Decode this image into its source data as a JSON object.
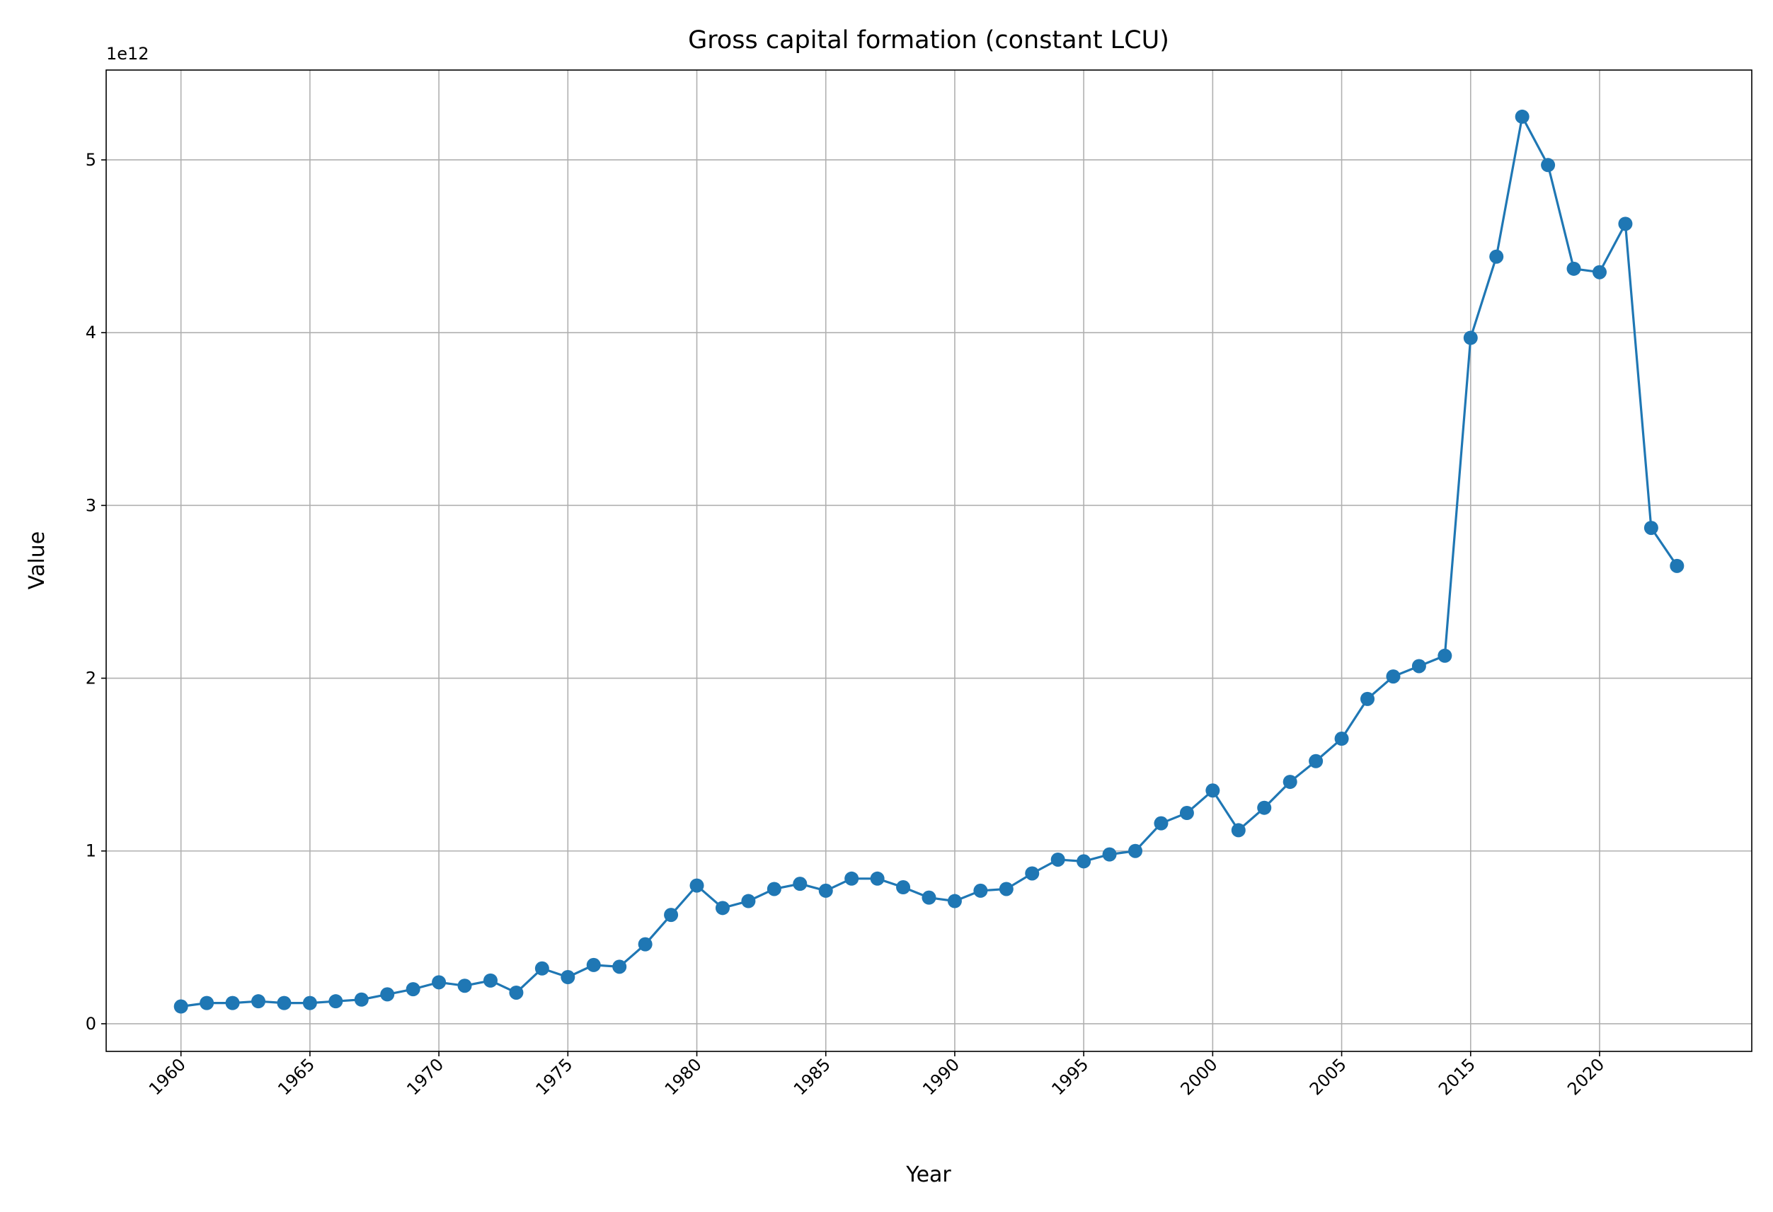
{
  "chart_data": {
    "type": "line",
    "title": "Gross capital formation (constant LCU)",
    "x_label": "Year",
    "y_label": "Value",
    "y_offset_label": "1e12",
    "categories": [
      "1960",
      null,
      null,
      null,
      null,
      "1965",
      null,
      null,
      null,
      null,
      "1970",
      null,
      null,
      null,
      null,
      "1975",
      null,
      null,
      null,
      null,
      "1980",
      null,
      null,
      null,
      null,
      "1985",
      null,
      null,
      null,
      null,
      "1990",
      null,
      null,
      null,
      null,
      "1995",
      null,
      null,
      null,
      null,
      "2000",
      null,
      null,
      null,
      null,
      "2005",
      null,
      null,
      null,
      null,
      "2015",
      null,
      null,
      null,
      null,
      "2020",
      null,
      null,
      null
    ],
    "values": [
      0.1,
      0.12,
      0.12,
      0.13,
      0.12,
      0.12,
      0.13,
      0.14,
      0.17,
      0.2,
      0.24,
      0.22,
      0.25,
      0.18,
      0.32,
      0.27,
      0.34,
      0.33,
      0.46,
      0.63,
      0.8,
      0.67,
      0.71,
      0.78,
      0.81,
      0.77,
      0.84,
      0.84,
      0.79,
      0.73,
      0.71,
      0.77,
      0.78,
      0.87,
      0.95,
      0.94,
      0.98,
      1.0,
      1.16,
      1.22,
      1.35,
      1.12,
      1.25,
      1.4,
      1.52,
      1.65,
      1.88,
      2.01,
      2.07,
      2.13,
      3.97,
      4.44,
      5.25,
      4.97,
      4.37,
      4.35,
      4.63,
      2.87,
      2.65
    ],
    "color": "#1f77b4",
    "ylim": [
      -0.16,
      5.52
    ],
    "yticks": [
      0,
      1,
      2,
      3,
      4,
      5
    ],
    "grid": true
  }
}
